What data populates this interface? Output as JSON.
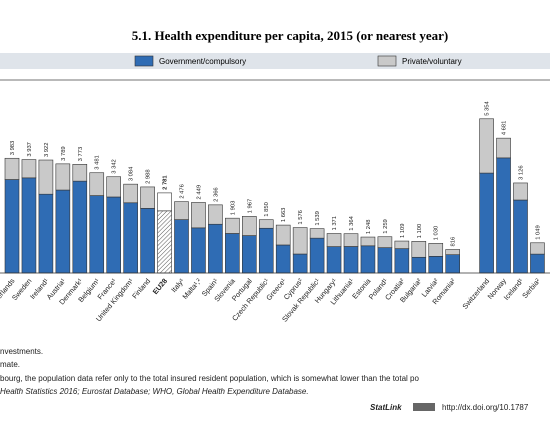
{
  "chart_data": {
    "type": "stacked-bar",
    "title": "5.1. Health expenditure per capita, 2015 (or nearest year)",
    "categories": [
      "Netherlands",
      "Sweden",
      "Ireland¹",
      "Austria¹",
      "Denmark¹",
      "Belgium¹",
      "France¹",
      "United Kingdom¹",
      "Finland",
      "EU28",
      "Italy¹",
      "Malta¹,²",
      "Spain¹",
      "Slovenia",
      "Portugal",
      "Czech Republic¹",
      "Greece¹",
      "Cyprus²",
      "Slovak Republic¹",
      "Hungary¹",
      "Lithuania¹",
      "Estonia",
      "Poland¹",
      "Croatia²",
      "Bulgaria²",
      "Latvia²",
      "Romania²",
      null,
      "Switzerland",
      "Norway",
      "Iceland¹",
      "Serbia²"
    ],
    "series": [
      {
        "name": "Government/compulsory",
        "color": "#2f6cb4",
        "values": [
          3245,
          3303,
          2736,
          2880,
          3189,
          2687,
          2639,
          2438,
          2244,
          2158,
          1853,
          1567,
          1693,
          1372,
          1299,
          1554,
          973,
          659,
          1210,
          916,
          920,
          944,
          880,
          846,
          546,
          579,
          636,
          null,
          3469,
          3996,
          2534,
          656
        ]
      },
      {
        "name": "Private/voluntary",
        "color": "#c9c9c9",
        "values": [
          738,
          634,
          1186,
          909,
          584,
          794,
          703,
          646,
          744,
          623,
          623,
          882,
          673,
          531,
          668,
          296,
          690,
          917,
          329,
          455,
          444,
          304,
          379,
          263,
          554,
          451,
          180,
          null,
          1885,
          685,
          592,
          393
        ]
      }
    ],
    "value_labels": [
      "3 983",
      "3 937",
      "3 922",
      "3 789",
      "3 773",
      "3 481",
      "3 342",
      "3 084",
      "2 988",
      "2 781",
      "2 476",
      "2 449",
      "2 366",
      "1 903",
      "1 967",
      "1 850",
      "1 663",
      "1 576",
      "1 539",
      "1 371",
      "1 364",
      "1 248",
      "1 259",
      "1 109",
      "1 100",
      "1 030",
      "816",
      null,
      "5 354",
      "4 681",
      "3 126",
      "1 049"
    ],
    "highlight": "EU28",
    "ylim": [
      0,
      6700
    ],
    "legend": "top",
    "notes": [
      "nvestments.",
      "mate.",
      "bourg, the population data refer only to the total insured resident population, which is somewhat lower than the total po"
    ],
    "source": "Health Statistics 2016; Eurostat Database; WHO, Global Health Expenditure Database.",
    "statlink": "StatLink",
    "url": "http://dx.doi.org/10.1787"
  }
}
